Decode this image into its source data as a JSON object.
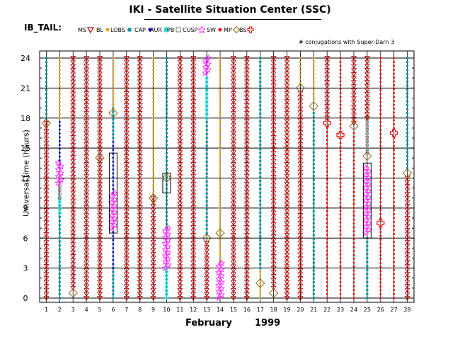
{
  "header": {
    "title": "IKI - Satellite Situation Center (SSC)",
    "panel_label": "IB_TAIL:",
    "note": "# conjugations with Super-Darn 3"
  },
  "legend": [
    {
      "id": "MS",
      "label": "MS",
      "symbol": "tri-down",
      "color": "#c00000"
    },
    {
      "id": "BL",
      "label": "BL",
      "symbol": "dot",
      "color": "#f0a000"
    },
    {
      "id": "LOBS",
      "label": "LOBS",
      "symbol": "square",
      "color": "#009a9a"
    },
    {
      "id": "CAP",
      "label": "CAP",
      "symbol": "dot",
      "color": "#0000cc"
    },
    {
      "id": "AUR",
      "label": "AUR",
      "symbol": "star",
      "color": "#00d0d0"
    },
    {
      "id": "PB",
      "label": "PB",
      "symbol": "open-square",
      "color": "#707070"
    },
    {
      "id": "CUSP",
      "label": "CUSP",
      "symbol": "star",
      "color": "#ff33ff"
    },
    {
      "id": "SW",
      "label": "SW",
      "symbol": "dot",
      "color": "#ff0000"
    },
    {
      "id": "MP",
      "label": "MP",
      "symbol": "diamond",
      "color": "#8b6914"
    },
    {
      "id": "BS",
      "label": "BS",
      "symbol": "cross",
      "color": "#ff0000"
    }
  ],
  "chart_data": {
    "type": "scatter",
    "title": "IKI - Satellite Situation Center (SSC)",
    "xlabel": "February",
    "year_label": "1999",
    "ylabel": "Universal time (hours)",
    "x_categories": [
      "1",
      "2",
      "3",
      "4",
      "5",
      "6",
      "7",
      "8",
      "9",
      "10",
      "11",
      "12",
      "13",
      "14",
      "15",
      "16",
      "17",
      "18",
      "19",
      "20",
      "21",
      "22",
      "23",
      "24",
      "25",
      "26",
      "27",
      "28"
    ],
    "y_ticks": [
      0,
      3,
      6,
      9,
      12,
      15,
      18,
      21,
      24
    ],
    "ylim": [
      0,
      24
    ],
    "grid": true,
    "segments": [
      {
        "day": 1,
        "region": "MS",
        "from": 0,
        "to": 17.5
      },
      {
        "day": 1,
        "region": "LOBS",
        "from": 18,
        "to": 24
      },
      {
        "day": 2,
        "region": "LOBS",
        "from": 0,
        "to": 8.5
      },
      {
        "day": 2,
        "region": "AUR",
        "from": 8.5,
        "to": 10
      },
      {
        "day": 2,
        "region": "PB",
        "from": 10,
        "to": 12
      },
      {
        "day": 2,
        "region": "CAP",
        "from": 13,
        "to": 18
      },
      {
        "day": 2,
        "region": "BL",
        "from": 18,
        "to": 24
      },
      {
        "day": 3,
        "region": "MS",
        "from": 1,
        "to": 24
      },
      {
        "day": 4,
        "region": "MS",
        "from": 0,
        "to": 24
      },
      {
        "day": 5,
        "region": "MS",
        "from": 0,
        "to": 24
      },
      {
        "day": 6,
        "region": "LOBS",
        "from": 0,
        "to": 3
      },
      {
        "day": 6,
        "region": "CAP",
        "from": 3,
        "to": 7
      },
      {
        "day": 6,
        "region": "CAP",
        "from": 10.5,
        "to": 16
      },
      {
        "day": 6,
        "region": "LOBS",
        "from": 16,
        "to": 19
      },
      {
        "day": 6,
        "region": "BL",
        "from": 19,
        "to": 24
      },
      {
        "day": 7,
        "region": "MS",
        "from": 0,
        "to": 24
      },
      {
        "day": 8,
        "region": "MS",
        "from": 0,
        "to": 24
      },
      {
        "day": 9,
        "region": "MS",
        "from": 0,
        "to": 10
      },
      {
        "day": 9,
        "region": "BL",
        "from": 10.5,
        "to": 24
      },
      {
        "day": 10,
        "region": "AUR",
        "from": 0,
        "to": 3
      },
      {
        "day": 10,
        "region": "LOBS",
        "from": 7,
        "to": 24
      },
      {
        "day": 11,
        "region": "MS",
        "from": 0,
        "to": 24
      },
      {
        "day": 12,
        "region": "MS",
        "from": 0,
        "to": 24
      },
      {
        "day": 13,
        "region": "MS",
        "from": 0,
        "to": 5.5
      },
      {
        "day": 13,
        "region": "LOBS",
        "from": 6.5,
        "to": 18
      },
      {
        "day": 13,
        "region": "AUR",
        "from": 18,
        "to": 22
      },
      {
        "day": 13,
        "region": "CAP",
        "from": 22.5,
        "to": 24
      },
      {
        "day": 14,
        "region": "BL",
        "from": 3.5,
        "to": 24
      },
      {
        "day": 15,
        "region": "MS",
        "from": 0,
        "to": 24
      },
      {
        "day": 16,
        "region": "MS",
        "from": 0,
        "to": 24
      },
      {
        "day": 17,
        "region": "BL",
        "from": 0,
        "to": 3
      },
      {
        "day": 17,
        "region": "LOBS",
        "from": 3,
        "to": 24
      },
      {
        "day": 18,
        "region": "MS",
        "from": 1,
        "to": 24
      },
      {
        "day": 19,
        "region": "MS",
        "from": 0,
        "to": 24
      },
      {
        "day": 20,
        "region": "MS",
        "from": 0,
        "to": 20.5
      },
      {
        "day": 20,
        "region": "BL",
        "from": 21.5,
        "to": 24
      },
      {
        "day": 21,
        "region": "LOBS",
        "from": 0,
        "to": 18.5
      },
      {
        "day": 21,
        "region": "BL",
        "from": 20,
        "to": 24
      },
      {
        "day": 22,
        "region": "SW",
        "from": 0,
        "to": 17
      },
      {
        "day": 22,
        "region": "MS",
        "from": 18,
        "to": 24
      },
      {
        "day": 23,
        "region": "SW",
        "from": 0,
        "to": 15.5
      },
      {
        "day": 23,
        "region": "SW",
        "from": 17,
        "to": 24
      },
      {
        "day": 24,
        "region": "SW",
        "from": 0,
        "to": 16.5
      },
      {
        "day": 24,
        "region": "MS",
        "from": 17.5,
        "to": 24
      },
      {
        "day": 25,
        "region": "LOBS",
        "from": 0,
        "to": 6
      },
      {
        "day": 25,
        "region": "PB",
        "from": 14.5,
        "to": 18
      },
      {
        "day": 25,
        "region": "MS",
        "from": 18,
        "to": 24
      },
      {
        "day": 26,
        "region": "SW",
        "from": 0,
        "to": 7
      },
      {
        "day": 26,
        "region": "SW",
        "from": 8,
        "to": 24
      },
      {
        "day": 27,
        "region": "SW",
        "from": 0,
        "to": 16
      },
      {
        "day": 27,
        "region": "SW",
        "from": 17,
        "to": 24
      },
      {
        "day": 28,
        "region": "MS",
        "from": 0,
        "to": 12
      },
      {
        "day": 28,
        "region": "LOBS",
        "from": 13,
        "to": 24
      }
    ],
    "cusp_spans": [
      {
        "day": 2,
        "from": 11.5,
        "to": 13.5
      },
      {
        "day": 6,
        "from": 7,
        "to": 10.5
      },
      {
        "day": 10,
        "from": 3,
        "to": 7
      },
      {
        "day": 13,
        "from": 22.5,
        "to": 24
      },
      {
        "day": 14,
        "from": 0,
        "to": 3.5
      },
      {
        "day": 25,
        "from": 6.5,
        "to": 13
      }
    ],
    "mp_crossings": [
      {
        "day": 1,
        "time": 17.5
      },
      {
        "day": 3,
        "time": 0.5
      },
      {
        "day": 5,
        "time": 14
      },
      {
        "day": 6,
        "time": 18.5
      },
      {
        "day": 9,
        "time": 10
      },
      {
        "day": 10,
        "time": 12
      },
      {
        "day": 13,
        "time": 6
      },
      {
        "day": 14,
        "time": 6.5
      },
      {
        "day": 17,
        "time": 1.5
      },
      {
        "day": 18,
        "time": 0.5
      },
      {
        "day": 20,
        "time": 21
      },
      {
        "day": 21,
        "time": 19.2
      },
      {
        "day": 24,
        "time": 17.2
      },
      {
        "day": 25,
        "time": 14.2
      },
      {
        "day": 28,
        "time": 12.5
      }
    ],
    "bs_crossings": [
      {
        "day": 22,
        "time": 17.5
      },
      {
        "day": 23,
        "time": 16.3
      },
      {
        "day": 26,
        "time": 7.5
      },
      {
        "day": 27,
        "time": 16.5
      }
    ],
    "conjugation_boxes": [
      {
        "day": 6,
        "from": 6.5,
        "to": 14.5
      },
      {
        "day": 10,
        "from": 10.5,
        "to": 12.5
      },
      {
        "day": 25,
        "from": 6,
        "to": 13.5
      }
    ]
  }
}
